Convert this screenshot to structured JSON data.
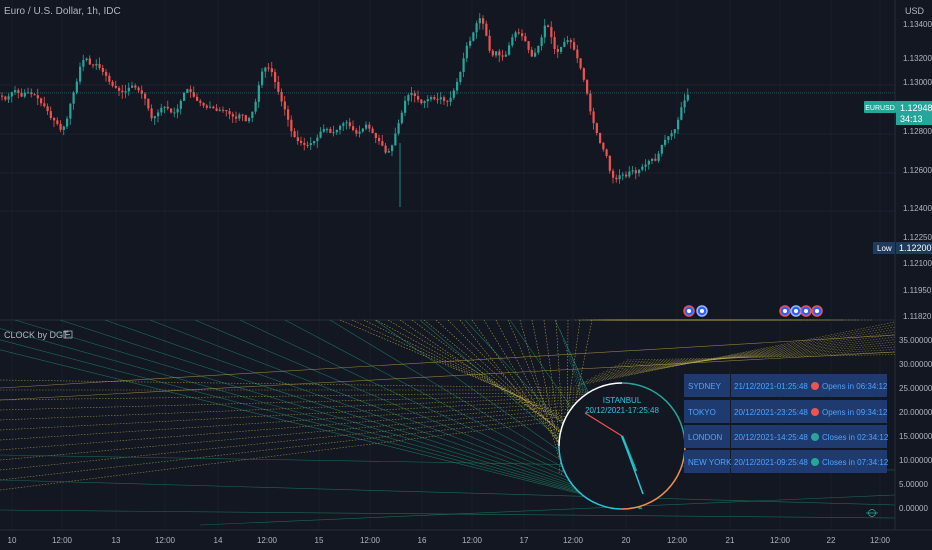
{
  "symbol_title": "Euro / U.S. Dollar, 1h, IDC",
  "price_axis": {
    "currency": "USD",
    "ticks": [
      "1.13400",
      "1.13200",
      "1.13000",
      "1.12800",
      "1.12600",
      "1.12400",
      "1.12250",
      "1.12100",
      "1.11950",
      "1.11820"
    ],
    "last_price_symbol": "EURUSD",
    "last_price": "1.12948",
    "countdown": "34:13",
    "low_label": "Low",
    "low_value": "1.12200"
  },
  "indicator": {
    "title": "CLOCK by DGT",
    "axis_ticks": [
      "35.00000",
      "30.00000",
      "25.00000",
      "20.00000",
      "15.00000",
      "10.00000",
      "5.00000",
      "0.00000"
    ],
    "clock_city": "ISTANBUL",
    "clock_datetime": "20/12/2021-17:25:48",
    "sessions": [
      {
        "name": "SYDNEY",
        "time": "21/12/2021-01:25:48",
        "status": "Opens in 06:34:12",
        "dot": "#ef5350"
      },
      {
        "name": "TOKYO",
        "time": "20/12/2021-23:25:48",
        "status": "Opens in 09:34:12",
        "dot": "#ef5350"
      },
      {
        "name": "LONDON",
        "time": "20/12/2021-14:25:48",
        "status": "Closes in 02:34:12",
        "dot": "#26a69a"
      },
      {
        "name": "NEW YORK",
        "time": "20/12/2021-09:25:48",
        "status": "Closes in 07:34:12",
        "dot": "#26a69a"
      }
    ]
  },
  "time_axis": [
    "10",
    "12:00",
    "13",
    "12:00",
    "14",
    "12:00",
    "15",
    "12:00",
    "16",
    "12:00",
    "17",
    "12:00",
    "20",
    "12:00",
    "21",
    "12:00",
    "22",
    "12:00"
  ],
  "colors": {
    "up": "#26a69a",
    "down": "#ef5350",
    "bg": "#131722",
    "accent": "#2962ff"
  },
  "chart_data": {
    "type": "candlestick",
    "title": "Euro / U.S. Dollar, 1h, IDC",
    "ylim": [
      1.1182,
      1.1352
    ],
    "close_path": [
      [
        0,
        1.1293
      ],
      [
        5,
        1.129
      ],
      [
        10,
        1.1295
      ],
      [
        15,
        1.1297
      ],
      [
        20,
        1.1292
      ],
      [
        25,
        1.1296
      ],
      [
        30,
        1.1294
      ],
      [
        35,
        1.1293
      ],
      [
        40,
        1.1288
      ],
      [
        45,
        1.1285
      ],
      [
        50,
        1.1278
      ],
      [
        55,
        1.1276
      ],
      [
        60,
        1.127
      ],
      [
        65,
        1.1275
      ],
      [
        70,
        1.129
      ],
      [
        75,
        1.13
      ],
      [
        80,
        1.1315
      ],
      [
        85,
        1.1318
      ],
      [
        90,
        1.1312
      ],
      [
        95,
        1.1314
      ],
      [
        100,
        1.131
      ],
      [
        105,
        1.1306
      ],
      [
        110,
        1.13
      ],
      [
        115,
        1.1298
      ],
      [
        120,
        1.1295
      ],
      [
        125,
        1.1296
      ],
      [
        130,
        1.13
      ],
      [
        135,
        1.1298
      ],
      [
        140,
        1.1295
      ],
      [
        145,
        1.129
      ],
      [
        150,
        1.1278
      ],
      [
        155,
        1.128
      ],
      [
        160,
        1.1285
      ],
      [
        165,
        1.1286
      ],
      [
        170,
        1.1282
      ],
      [
        175,
        1.1282
      ],
      [
        180,
        1.129
      ],
      [
        185,
        1.1298
      ],
      [
        190,
        1.1295
      ],
      [
        195,
        1.129
      ],
      [
        200,
        1.1288
      ],
      [
        205,
        1.1285
      ],
      [
        210,
        1.1286
      ],
      [
        215,
        1.1283
      ],
      [
        220,
        1.1284
      ],
      [
        225,
        1.1283
      ],
      [
        230,
        1.128
      ],
      [
        235,
        1.1278
      ],
      [
        240,
        1.1282
      ],
      [
        245,
        1.1276
      ],
      [
        250,
        1.128
      ],
      [
        255,
        1.129
      ],
      [
        260,
        1.1308
      ],
      [
        265,
        1.1312
      ],
      [
        270,
        1.131
      ],
      [
        275,
        1.13
      ],
      [
        280,
        1.129
      ],
      [
        285,
        1.1282
      ],
      [
        290,
        1.127
      ],
      [
        295,
        1.1264
      ],
      [
        300,
        1.1262
      ],
      [
        305,
        1.126
      ],
      [
        310,
        1.1262
      ],
      [
        315,
        1.1264
      ],
      [
        320,
        1.127
      ],
      [
        325,
        1.1272
      ],
      [
        330,
        1.1268
      ],
      [
        335,
        1.127
      ],
      [
        340,
        1.1274
      ],
      [
        345,
        1.1276
      ],
      [
        350,
        1.1272
      ],
      [
        355,
        1.1268
      ],
      [
        360,
        1.127
      ],
      [
        365,
        1.1274
      ],
      [
        370,
        1.127
      ],
      [
        375,
        1.1265
      ],
      [
        380,
        1.1262
      ],
      [
        385,
        1.1255
      ],
      [
        390,
        1.1258
      ],
      [
        395,
        1.127
      ],
      [
        400,
        1.128
      ],
      [
        405,
        1.1292
      ],
      [
        410,
        1.1295
      ],
      [
        415,
        1.1292
      ],
      [
        420,
        1.1288
      ],
      [
        425,
        1.129
      ],
      [
        430,
        1.1292
      ],
      [
        435,
        1.129
      ],
      [
        440,
        1.1292
      ],
      [
        445,
        1.1288
      ],
      [
        450,
        1.1292
      ],
      [
        455,
        1.13
      ],
      [
        460,
        1.131
      ],
      [
        465,
        1.1325
      ],
      [
        470,
        1.133
      ],
      [
        475,
        1.134
      ],
      [
        480,
        1.1345
      ],
      [
        485,
        1.1333
      ],
      [
        490,
        1.1318
      ],
      [
        495,
        1.1322
      ],
      [
        500,
        1.1318
      ],
      [
        505,
        1.132
      ],
      [
        510,
        1.133
      ],
      [
        515,
        1.1335
      ],
      [
        520,
        1.1333
      ],
      [
        525,
        1.1328
      ],
      [
        530,
        1.1318
      ],
      [
        535,
        1.1322
      ],
      [
        540,
        1.133
      ],
      [
        545,
        1.1342
      ],
      [
        550,
        1.1332
      ],
      [
        555,
        1.132
      ],
      [
        560,
        1.1325
      ],
      [
        565,
        1.133
      ],
      [
        570,
        1.1328
      ],
      [
        575,
        1.132
      ],
      [
        580,
        1.131
      ],
      [
        585,
        1.1298
      ],
      [
        590,
        1.128
      ],
      [
        595,
        1.127
      ],
      [
        600,
        1.126
      ],
      [
        605,
        1.1255
      ],
      [
        610,
        1.124
      ],
      [
        615,
        1.1238
      ],
      [
        620,
        1.1242
      ],
      [
        625,
        1.124
      ],
      [
        630,
        1.1245
      ],
      [
        635,
        1.1242
      ],
      [
        640,
        1.1246
      ],
      [
        645,
        1.1248
      ],
      [
        650,
        1.1252
      ],
      [
        655,
        1.125
      ],
      [
        660,
        1.126
      ],
      [
        665,
        1.1265
      ],
      [
        670,
        1.1268
      ],
      [
        675,
        1.1272
      ],
      [
        680,
        1.1285
      ],
      [
        685,
        1.1292
      ],
      [
        688,
        1.12948
      ]
    ]
  }
}
